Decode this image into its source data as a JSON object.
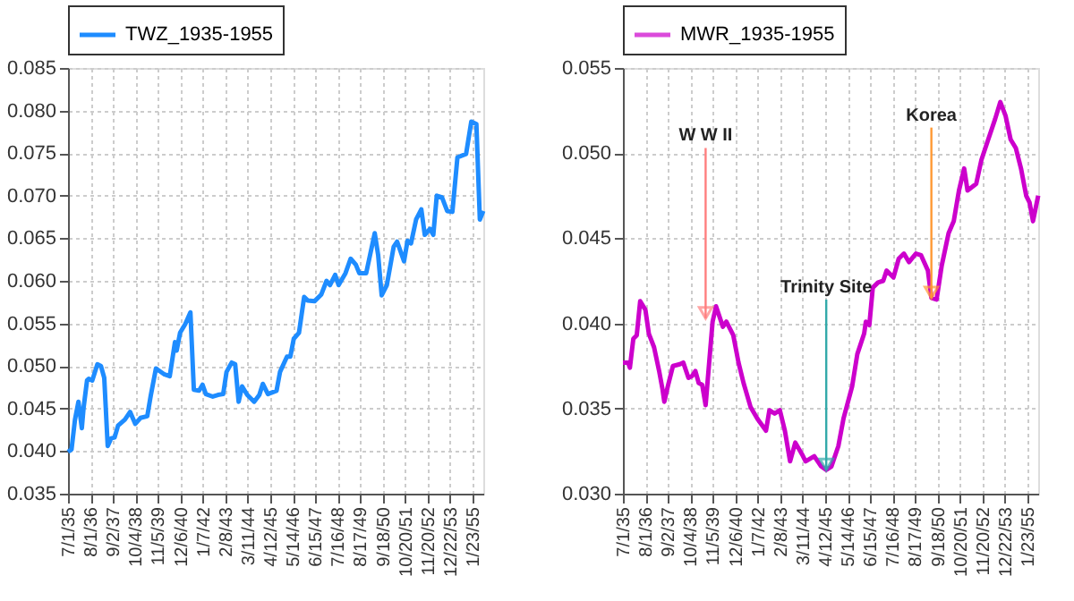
{
  "chart_data": [
    {
      "type": "line",
      "legend": "top",
      "grid": true,
      "line_style": "solid",
      "marker": "none",
      "xlim": [
        "1935-07-01",
        "1955-08-01"
      ],
      "xticks": [
        {
          "value": "1935-07-01",
          "label": "7/1/35"
        },
        {
          "value": "1936-08-01",
          "label": "8/1/36"
        },
        {
          "value": "1937-09-02",
          "label": "9/2/37"
        },
        {
          "value": "1938-10-04",
          "label": "10/4/38"
        },
        {
          "value": "1939-11-05",
          "label": "11/5/39"
        },
        {
          "value": "1940-12-06",
          "label": "12/6/40"
        },
        {
          "value": "1942-01-07",
          "label": "1/7/42"
        },
        {
          "value": "1943-02-08",
          "label": "2/8/43"
        },
        {
          "value": "1944-03-11",
          "label": "3/11/44"
        },
        {
          "value": "1945-04-12",
          "label": "4/12/45"
        },
        {
          "value": "1946-05-14",
          "label": "5/14/46"
        },
        {
          "value": "1947-06-15",
          "label": "6/15/47"
        },
        {
          "value": "1948-07-16",
          "label": "7/16/48"
        },
        {
          "value": "1949-08-17",
          "label": "8/17/49"
        },
        {
          "value": "1950-09-18",
          "label": "9/18/50"
        },
        {
          "value": "1951-10-20",
          "label": "10/20/51"
        },
        {
          "value": "1952-11-20",
          "label": "11/20/52"
        },
        {
          "value": "1953-12-22",
          "label": "12/22/53"
        },
        {
          "value": "1955-01-23",
          "label": "1/23/55"
        }
      ],
      "ylim": [
        0.035,
        0.085
      ],
      "yticks": [
        0.035,
        {
          "value": 0.04,
          "label": "0.040"
        },
        0.045,
        {
          "value": 0.05,
          "label": "0.050"
        },
        0.055,
        {
          "value": 0.06,
          "label": "0.060"
        },
        0.065,
        {
          "value": 0.07,
          "label": "0.070"
        },
        0.075,
        {
          "value": 0.08,
          "label": "0.080"
        },
        0.085
      ],
      "series": [
        {
          "name": "TWZ_1935-1955",
          "color": "#1e8cff",
          "x": [
            "1935-07",
            "1935-09",
            "1935-11",
            "1936-01",
            "1936-03",
            "1936-04",
            "1936-06",
            "1936-07",
            "1936-09",
            "1936-12",
            "1937-02",
            "1937-04",
            "1937-06",
            "1937-08",
            "1937-10",
            "1937-12",
            "1938-04",
            "1938-07",
            "1938-10",
            "1939-01",
            "1939-05",
            "1939-07",
            "1939-10",
            "1940-03",
            "1940-06",
            "1940-09",
            "1940-10",
            "1940-12",
            "1941-03",
            "1941-06",
            "1941-08",
            "1941-11",
            "1942-01",
            "1942-03",
            "1942-07",
            "1942-10",
            "1943-01",
            "1943-03",
            "1943-06",
            "1943-08",
            "1943-10",
            "1943-12",
            "1944-03",
            "1944-07",
            "1944-10",
            "1944-12",
            "1945-03",
            "1945-08",
            "1945-10",
            "1946-02",
            "1946-04",
            "1946-06",
            "1946-09",
            "1946-12",
            "1947-02",
            "1947-06",
            "1947-10",
            "1948-01",
            "1948-03",
            "1948-06",
            "1948-08",
            "1948-12",
            "1949-03",
            "1949-06",
            "1949-08",
            "1949-12",
            "1950-05",
            "1950-07",
            "1950-09",
            "1950-12",
            "1951-04",
            "1951-06",
            "1951-10",
            "1951-12",
            "1952-02",
            "1952-05",
            "1952-08",
            "1952-10",
            "1953-01",
            "1953-03",
            "1953-05",
            "1953-08",
            "1953-11",
            "1954-02",
            "1954-05",
            "1954-10",
            "1955-01",
            "1955-04",
            "1955-06",
            "1955-08"
          ],
          "values": [
            0.0399,
            0.0402,
            0.0437,
            0.0458,
            0.0427,
            0.0451,
            0.0483,
            0.0485,
            0.0483,
            0.0502,
            0.05,
            0.0486,
            0.0406,
            0.0415,
            0.0416,
            0.043,
            0.0437,
            0.0446,
            0.0432,
            0.0439,
            0.0441,
            0.0465,
            0.0497,
            0.049,
            0.0488,
            0.0528,
            0.0518,
            0.0539,
            0.0549,
            0.0563,
            0.0472,
            0.0471,
            0.0478,
            0.0467,
            0.0464,
            0.0466,
            0.0467,
            0.0493,
            0.0504,
            0.0502,
            0.0458,
            0.0476,
            0.0466,
            0.0458,
            0.0466,
            0.0479,
            0.0467,
            0.0471,
            0.0493,
            0.0511,
            0.0511,
            0.0532,
            0.0539,
            0.0581,
            0.0577,
            0.0576,
            0.0584,
            0.06,
            0.0595,
            0.0607,
            0.0595,
            0.0609,
            0.0626,
            0.0619,
            0.0609,
            0.0609,
            0.0656,
            0.063,
            0.0583,
            0.0595,
            0.064,
            0.0646,
            0.0623,
            0.0647,
            0.0644,
            0.0672,
            0.0684,
            0.0654,
            0.0661,
            0.0654,
            0.07,
            0.0698,
            0.0682,
            0.0681,
            0.0745,
            0.0749,
            0.0787,
            0.0784,
            0.0672,
            0.0682
          ]
        }
      ]
    },
    {
      "type": "line",
      "legend": "top",
      "grid": true,
      "line_style": "solid",
      "marker": "none",
      "xlim": [
        "1935-07-01",
        "1955-08-01"
      ],
      "xticks": [
        {
          "value": "1935-07-01",
          "label": "7/1/35"
        },
        {
          "value": "1936-08-01",
          "label": "8/1/36"
        },
        {
          "value": "1937-09-02",
          "label": "9/2/37"
        },
        {
          "value": "1938-10-04",
          "label": "10/4/38"
        },
        {
          "value": "1939-11-05",
          "label": "11/5/39"
        },
        {
          "value": "1940-12-06",
          "label": "12/6/40"
        },
        {
          "value": "1942-01-07",
          "label": "1/7/42"
        },
        {
          "value": "1943-02-08",
          "label": "2/8/43"
        },
        {
          "value": "1944-03-11",
          "label": "3/11/44"
        },
        {
          "value": "1945-04-12",
          "label": "4/12/45"
        },
        {
          "value": "1946-05-14",
          "label": "5/14/46"
        },
        {
          "value": "1947-06-15",
          "label": "6/15/47"
        },
        {
          "value": "1948-07-16",
          "label": "7/16/48"
        },
        {
          "value": "1949-08-17",
          "label": "8/17/49"
        },
        {
          "value": "1950-09-18",
          "label": "9/18/50"
        },
        {
          "value": "1951-10-20",
          "label": "10/20/51"
        },
        {
          "value": "1952-11-20",
          "label": "11/20/52"
        },
        {
          "value": "1953-12-22",
          "label": "12/22/53"
        },
        {
          "value": "1955-01-23",
          "label": "1/23/55"
        }
      ],
      "ylim": [
        0.03,
        0.055
      ],
      "yticks": [
        {
          "value": 0.03,
          "label": "0.030"
        },
        0.035,
        {
          "value": 0.04,
          "label": "0.040"
        },
        0.045,
        {
          "value": 0.05,
          "label": "0.050"
        },
        0.055
      ],
      "annotations": [
        {
          "text": "W W II",
          "x": "1939-07",
          "y": 0.0403
        },
        {
          "text": "Trinity Site",
          "x": "1945-05",
          "y": 0.0314
        },
        {
          "text": "Korea",
          "x": "1950-06",
          "y": 0.0415
        }
      ],
      "series": [
        {
          "name": "MWR_1935-1955",
          "color": "#cc00cc",
          "x": [
            "1935-07",
            "1935-10",
            "1935-11",
            "1936-01",
            "1936-03",
            "1936-05",
            "1936-08",
            "1936-10",
            "1937-01",
            "1937-04",
            "1937-06",
            "1937-07",
            "1937-09",
            "1937-12",
            "1938-04",
            "1938-06",
            "1938-09",
            "1938-11",
            "1939-01",
            "1939-03",
            "1939-05",
            "1939-07",
            "1939-11",
            "1940-01",
            "1940-05",
            "1940-07",
            "1940-11",
            "1941-02",
            "1941-05",
            "1941-09",
            "1942-01",
            "1942-06",
            "1942-08",
            "1942-11",
            "1943-02",
            "1943-05",
            "1943-08",
            "1943-11",
            "1944-03",
            "1944-05",
            "1944-10",
            "1945-02",
            "1945-05",
            "1945-08",
            "1945-12",
            "1946-03",
            "1946-08",
            "1946-11",
            "1947-03",
            "1947-04",
            "1947-06",
            "1947-08",
            "1947-11",
            "1948-02",
            "1948-04",
            "1948-08",
            "1948-11",
            "1949-02",
            "1949-05",
            "1949-09",
            "1949-12",
            "1950-04",
            "1950-06",
            "1950-09",
            "1950-12",
            "1951-04",
            "1951-07",
            "1951-10",
            "1952-01",
            "1952-03",
            "1952-08",
            "1952-11",
            "1953-03",
            "1953-07",
            "1953-10",
            "1954-01",
            "1954-04",
            "1954-07",
            "1954-10",
            "1955-01",
            "1955-03",
            "1955-05",
            "1955-08"
          ],
          "values": [
            0.0377,
            0.0377,
            0.0374,
            0.0391,
            0.0393,
            0.0413,
            0.0408,
            0.0394,
            0.0386,
            0.0372,
            0.0361,
            0.0354,
            0.0363,
            0.0375,
            0.0376,
            0.0377,
            0.0368,
            0.0369,
            0.0372,
            0.0365,
            0.0364,
            0.0352,
            0.0401,
            0.041,
            0.0398,
            0.0401,
            0.0393,
            0.0377,
            0.0365,
            0.0351,
            0.0344,
            0.0337,
            0.0349,
            0.0347,
            0.0349,
            0.0337,
            0.0319,
            0.033,
            0.0323,
            0.0319,
            0.0322,
            0.0316,
            0.0314,
            0.0316,
            0.0328,
            0.0344,
            0.0363,
            0.0382,
            0.0394,
            0.0401,
            0.0399,
            0.0421,
            0.0424,
            0.0425,
            0.0431,
            0.0427,
            0.0438,
            0.0441,
            0.0436,
            0.0441,
            0.044,
            0.0431,
            0.0415,
            0.0414,
            0.0434,
            0.0453,
            0.046,
            0.0478,
            0.0491,
            0.0478,
            0.0482,
            0.0496,
            0.0508,
            0.052,
            0.053,
            0.0522,
            0.0508,
            0.0503,
            0.0491,
            0.0475,
            0.0471,
            0.046,
            0.0475
          ]
        }
      ]
    }
  ]
}
